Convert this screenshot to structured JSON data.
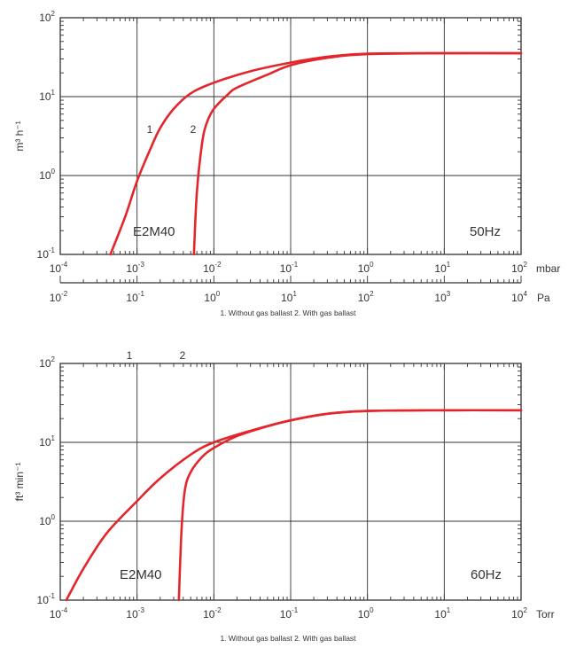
{
  "chart_data": [
    {
      "type": "line",
      "log_x": true,
      "log_y": true,
      "xlim": [
        0.0001,
        100
      ],
      "ylim": [
        0.1,
        100
      ],
      "xlabel": "mbar",
      "ylabel": "m³ h⁻¹",
      "y_tick_labels": [
        {
          "base": "10",
          "exp": "-1"
        },
        {
          "base": "10",
          "exp": "0"
        },
        {
          "base": "10",
          "exp": "1"
        },
        {
          "base": "10",
          "exp": "2"
        }
      ],
      "x_tick_labels": [
        {
          "base": "10",
          "exp": "-4"
        },
        {
          "base": "10",
          "exp": "-3"
        },
        {
          "base": "10",
          "exp": "-2"
        },
        {
          "base": "10",
          "exp": "-1"
        },
        {
          "base": "10",
          "exp": "0"
        },
        {
          "base": "10",
          "exp": "1"
        },
        {
          "base": "10",
          "exp": "2"
        }
      ],
      "secondary_x_axis": {
        "label": "Pa",
        "range": [
          0.01,
          10000
        ],
        "tick_labels": [
          {
            "base": "10",
            "exp": "-2"
          },
          {
            "base": "10",
            "exp": "-1"
          },
          {
            "base": "10",
            "exp": "0"
          },
          {
            "base": "10",
            "exp": "1"
          },
          {
            "base": "10",
            "exp": "2"
          },
          {
            "base": "10",
            "exp": "3"
          },
          {
            "base": "10",
            "exp": "4"
          }
        ]
      },
      "model_label": "E2M40",
      "frequency_label": "50Hz",
      "curve_labels": [
        "1",
        "2"
      ],
      "caption": "1. Without gas ballast     2. With gas ballast",
      "series": [
        {
          "name": "1",
          "points": [
            [
              0.00045,
              0.1
            ],
            [
              0.0007,
              0.3
            ],
            [
              0.001,
              0.85
            ],
            [
              0.0015,
              2.2
            ],
            [
              0.002,
              4
            ],
            [
              0.003,
              7
            ],
            [
              0.005,
              11
            ],
            [
              0.01,
              15
            ],
            [
              0.03,
              21
            ],
            [
              0.1,
              27
            ],
            [
              0.3,
              32
            ],
            [
              1,
              35
            ],
            [
              10,
              35.5
            ],
            [
              100,
              35.5
            ]
          ]
        },
        {
          "name": "2",
          "points": [
            [
              0.0055,
              0.1
            ],
            [
              0.006,
              0.6
            ],
            [
              0.007,
              2.5
            ],
            [
              0.008,
              4.5
            ],
            [
              0.01,
              7
            ],
            [
              0.015,
              10.5
            ],
            [
              0.02,
              13
            ],
            [
              0.05,
              19
            ],
            [
              0.1,
              25
            ],
            [
              0.3,
              31
            ],
            [
              1,
              34.5
            ],
            [
              10,
              35.5
            ],
            [
              100,
              35.5
            ]
          ]
        }
      ]
    },
    {
      "type": "line",
      "log_x": true,
      "log_y": true,
      "xlim": [
        0.0001,
        100
      ],
      "ylim": [
        0.1,
        100
      ],
      "xlabel": "Torr",
      "ylabel": "ft³ min⁻¹",
      "y_tick_labels": [
        {
          "base": "10",
          "exp": "-1"
        },
        {
          "base": "10",
          "exp": "0"
        },
        {
          "base": "10",
          "exp": "1"
        },
        {
          "base": "10",
          "exp": "2"
        }
      ],
      "x_tick_labels": [
        {
          "base": "10",
          "exp": "-4"
        },
        {
          "base": "10",
          "exp": "-3"
        },
        {
          "base": "10",
          "exp": "-2"
        },
        {
          "base": "10",
          "exp": "-1"
        },
        {
          "base": "10",
          "exp": "0"
        },
        {
          "base": "10",
          "exp": "1"
        },
        {
          "base": "10",
          "exp": "2"
        }
      ],
      "model_label": "E2M40",
      "frequency_label": "60Hz",
      "curve_labels": [
        "1",
        "2"
      ],
      "caption": "1. Without gas ballast     2. With gas ballast",
      "series": [
        {
          "name": "1",
          "points": [
            [
              0.00012,
              0.1
            ],
            [
              0.0002,
              0.25
            ],
            [
              0.0004,
              0.7
            ],
            [
              0.001,
              1.8
            ],
            [
              0.002,
              3.5
            ],
            [
              0.005,
              7
            ],
            [
              0.01,
              10
            ],
            [
              0.03,
              14
            ],
            [
              0.1,
              19
            ],
            [
              0.3,
              23
            ],
            [
              1,
              25
            ],
            [
              10,
              25.5
            ],
            [
              100,
              25.5
            ]
          ]
        },
        {
          "name": "2",
          "points": [
            [
              0.0035,
              0.1
            ],
            [
              0.0038,
              0.8
            ],
            [
              0.0042,
              2.5
            ],
            [
              0.005,
              4.2
            ],
            [
              0.007,
              6.5
            ],
            [
              0.01,
              8.5
            ],
            [
              0.02,
              12
            ],
            [
              0.05,
              16
            ],
            [
              0.1,
              19
            ],
            [
              0.3,
              23
            ],
            [
              1,
              25
            ],
            [
              10,
              25.5
            ],
            [
              100,
              25.5
            ]
          ]
        }
      ]
    }
  ]
}
